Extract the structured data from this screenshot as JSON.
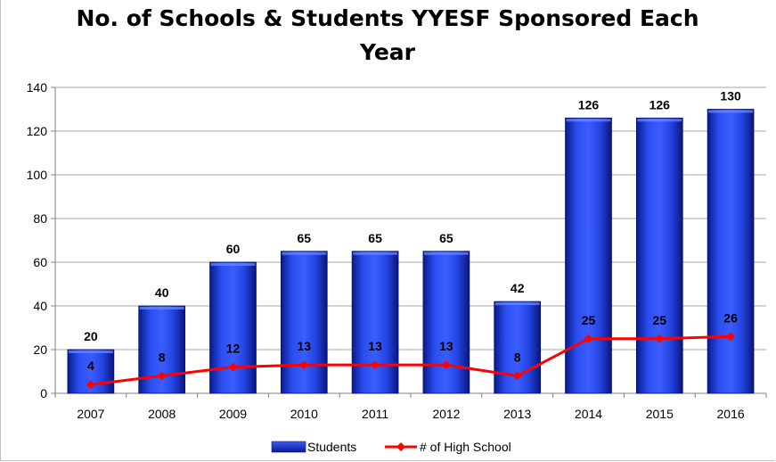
{
  "chart_data": {
    "type": "bar+line",
    "title": "No. of Schools & Students YYESF Sponsored Each Year",
    "categories": [
      "2007",
      "2008",
      "2009",
      "2010",
      "2011",
      "2012",
      "2013",
      "2014",
      "2015",
      "2016"
    ],
    "series": [
      {
        "name": "Students",
        "type": "bar",
        "values": [
          20,
          40,
          60,
          65,
          65,
          65,
          42,
          126,
          126,
          130
        ],
        "color": "#1f3fd6"
      },
      {
        "name": "# of High School",
        "type": "line",
        "values": [
          4,
          8,
          12,
          13,
          13,
          13,
          8,
          25,
          25,
          26
        ],
        "color": "#ff0000"
      }
    ],
    "ylim": [
      0,
      140
    ],
    "yticks": [
      "0",
      "20",
      "40",
      "60",
      "80",
      "100",
      "120",
      "140"
    ],
    "grid": true,
    "legend": "bottom"
  }
}
